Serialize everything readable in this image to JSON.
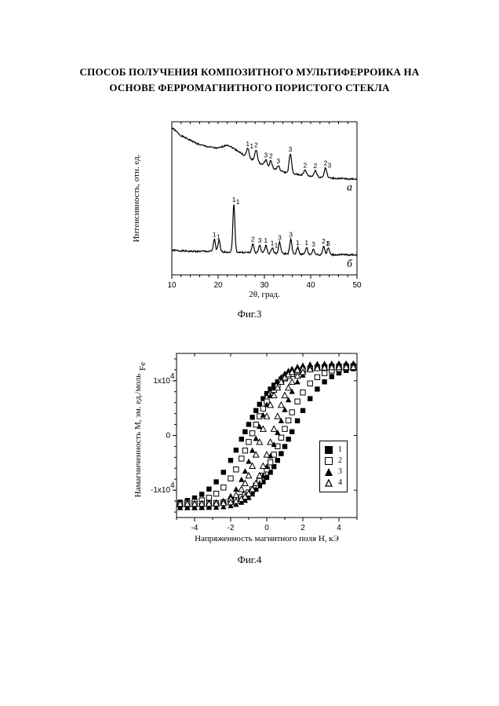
{
  "title_line1": "СПОСОБ ПОЛУЧЕНИЯ КОМПОЗИТНОГО МУЛЬТИФЕРРОИКА НА",
  "title_line2": "ОСНОВЕ ФЕРРОМАГНИТНОГО ПОРИСТОГО СТЕКЛА",
  "fig3": {
    "caption": "Фиг.3",
    "xlabel": "2θ, град.",
    "ylabel": "Интенсивность, отн. ед.",
    "xlim": [
      10,
      50
    ],
    "xticks": [
      10,
      20,
      30,
      40,
      50
    ],
    "box_color": "#000000",
    "bg_color": "#ffffff",
    "trace_color": "#000000",
    "trace_width": 1.2,
    "panel_a": {
      "label": "а",
      "baseline": [
        [
          10,
          150
        ],
        [
          12,
          132
        ],
        [
          14,
          122
        ],
        [
          16,
          112
        ],
        [
          18,
          107
        ],
        [
          20,
          104
        ],
        [
          22,
          112
        ],
        [
          24,
          100
        ],
        [
          26,
          86
        ],
        [
          28,
          76
        ],
        [
          30,
          66
        ],
        [
          32,
          58
        ],
        [
          34,
          52
        ],
        [
          35.5,
          48
        ],
        [
          38,
          45
        ],
        [
          40,
          42
        ],
        [
          42,
          40
        ],
        [
          44,
          38
        ],
        [
          46,
          37
        ],
        [
          48,
          36
        ],
        [
          50,
          36
        ]
      ],
      "noise_amp": 3.5,
      "peaks": [
        {
          "x": 26.4,
          "h": 20,
          "w": 0.6,
          "lbl": "1",
          "lbl2": "1"
        },
        {
          "x": 28.2,
          "h": 26,
          "w": 0.6,
          "lbl": "2"
        },
        {
          "x": 30.3,
          "h": 14,
          "w": 0.6,
          "lbl": "3"
        },
        {
          "x": 31.4,
          "h": 16,
          "w": 0.6,
          "lbl": "2"
        },
        {
          "x": 33.0,
          "h": 10,
          "w": 0.6,
          "lbl": "3"
        },
        {
          "x": 35.6,
          "h": 44,
          "w": 0.6,
          "lbl": "3"
        },
        {
          "x": 38.8,
          "h": 12,
          "w": 0.6,
          "lbl": "2"
        },
        {
          "x": 41.0,
          "h": 14,
          "w": 0.6,
          "lbl": "2"
        },
        {
          "x": 43.2,
          "h": 22,
          "w": 0.6,
          "lbl": "2",
          "lbl2": "3"
        }
      ]
    },
    "panel_b": {
      "label": "б",
      "baseline": [
        [
          10,
          38
        ],
        [
          14,
          36
        ],
        [
          18,
          36
        ],
        [
          22,
          35
        ],
        [
          26,
          34
        ],
        [
          30,
          33
        ],
        [
          34,
          32
        ],
        [
          38,
          31
        ],
        [
          42,
          30
        ],
        [
          46,
          30
        ],
        [
          50,
          30
        ]
      ],
      "noise_amp": 3.0,
      "peaks": [
        {
          "x": 19.2,
          "h": 22,
          "w": 0.5,
          "lbl": "1",
          "lbl2": "1"
        },
        {
          "x": 20.2,
          "h": 20,
          "w": 0.5
        },
        {
          "x": 23.4,
          "h": 85,
          "w": 0.5,
          "lbl": "1",
          "lbl2": "1"
        },
        {
          "x": 27.5,
          "h": 16,
          "w": 0.5,
          "lbl": "2"
        },
        {
          "x": 29.0,
          "h": 14,
          "w": 0.5,
          "lbl": "3"
        },
        {
          "x": 30.3,
          "h": 14,
          "w": 0.5,
          "lbl": "1"
        },
        {
          "x": 31.7,
          "h": 10,
          "w": 0.5,
          "lbl": "1",
          "lbl2": "1"
        },
        {
          "x": 33.3,
          "h": 20,
          "w": 0.5,
          "lbl": "3"
        },
        {
          "x": 35.7,
          "h": 26,
          "w": 0.5,
          "lbl": "3"
        },
        {
          "x": 37.2,
          "h": 12,
          "w": 0.5,
          "lbl": "1"
        },
        {
          "x": 39.1,
          "h": 12,
          "w": 0.5,
          "lbl": "1"
        },
        {
          "x": 40.6,
          "h": 10,
          "w": 0.5,
          "lbl": "3"
        },
        {
          "x": 42.8,
          "h": 16,
          "w": 0.5,
          "lbl": "2",
          "lbl2": "1"
        },
        {
          "x": 43.8,
          "h": 12,
          "w": 0.5,
          "lbl": "3"
        }
      ]
    }
  },
  "fig4": {
    "caption": "Фиг.4",
    "xlabel": "Напряженность магнитного поля H, кЭ",
    "ylabel": "Намагниченность M, эм. ед./мольFe",
    "ylabel_sub": "Fe",
    "xlim": [
      -5,
      5
    ],
    "xticks": [
      -4,
      -2,
      0,
      2,
      4
    ],
    "ylim": [
      -15000,
      15000
    ],
    "yticks": [
      {
        "v": -10000,
        "label": "-1x10",
        "sup": "4"
      },
      {
        "v": 0,
        "label": "0",
        "sup": ""
      },
      {
        "v": 10000,
        "label": "1x10",
        "sup": "4"
      }
    ],
    "box_color": "#000000",
    "bg_color": "#ffffff",
    "legend": [
      {
        "marker": "sq-filled",
        "label": "1"
      },
      {
        "marker": "sq-open",
        "label": "2"
      },
      {
        "marker": "tri-filled",
        "label": "3"
      },
      {
        "marker": "tri-open",
        "label": "4"
      }
    ],
    "series": [
      {
        "name": "1",
        "marker": "sq-filled",
        "color": "#000000",
        "Hc": 1.3,
        "Ms": 12800,
        "slope": 6800
      },
      {
        "name": "2",
        "marker": "sq-open",
        "color": "#000000",
        "Hc": 0.85,
        "Ms": 12600,
        "slope": 8000
      },
      {
        "name": "3",
        "marker": "tri-filled",
        "color": "#000000",
        "Hc": 0.55,
        "Ms": 13200,
        "slope": 11000
      },
      {
        "name": "4",
        "marker": "tri-open",
        "color": "#000000",
        "Hc": 0.3,
        "Ms": 12500,
        "slope": 12000
      }
    ],
    "H_points": [
      -4.8,
      -4.4,
      -4.0,
      -3.6,
      -3.2,
      -2.8,
      -2.4,
      -2.0,
      -1.7,
      -1.4,
      -1.2,
      -1.0,
      -0.8,
      -0.6,
      -0.4,
      -0.2,
      0.0,
      0.2,
      0.4,
      0.6,
      0.8,
      1.0,
      1.2,
      1.4,
      1.7,
      2.0,
      2.4,
      2.8,
      3.2,
      3.6,
      4.0,
      4.4,
      4.8
    ]
  }
}
